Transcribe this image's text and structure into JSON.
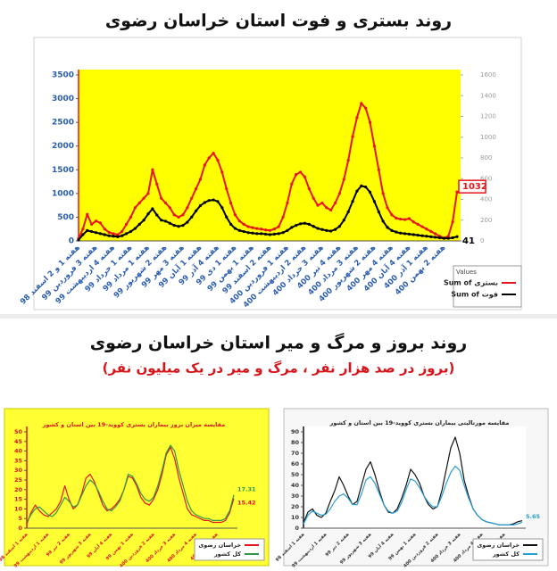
{
  "section_title": "روند بروز و مرگ و میر استان خراسان رضوی",
  "section_subtitle": "(بروز در صد هزار نفر ، مرگ و میر در یک میلیون نفر)",
  "chart_data": [
    {
      "type": "line",
      "title": "روند بستری و فوت استان خراسان رضوی",
      "plot_color": "#ffff00",
      "categories": [
        "هفته 1 و 2 اسفند 98",
        null,
        null,
        null,
        "هفته 3 فروردین 99",
        null,
        null,
        null,
        "هفته 4 اردیبهشت 99",
        null,
        null,
        null,
        "هفته 1 خرداد 99",
        null,
        null,
        null,
        "هفته 1 مرداد 99",
        null,
        null,
        null,
        "هفته 2 شهریور 99",
        null,
        null,
        null,
        "هفته 3 مهر 99",
        null,
        null,
        null,
        "هفته 1 آبان 99",
        null,
        null,
        null,
        "هفته 4 آذر 99",
        null,
        null,
        null,
        "هفته 1 دی 99",
        null,
        null,
        null,
        "هفته 1 بهمن 99",
        null,
        null,
        null,
        "هفته 2 اسفند 99",
        null,
        null,
        null,
        "هفته 1 فروردین 400",
        null,
        null,
        null,
        "هفته 2 اردیبهشت 400",
        null,
        null,
        null,
        "هفته 3 خرداد 400",
        null,
        null,
        null,
        "هفته 4 تیر 400",
        null,
        null,
        null,
        "هفته 3 مرداد 400",
        null,
        null,
        null,
        "هفته 2 شهریور 400",
        null,
        null,
        null,
        "هفته 4 مهر 400",
        null,
        null,
        null,
        "هفته 4 آبان 400",
        null,
        null,
        null,
        "هفته 1 آذر 400",
        null,
        null,
        null,
        "هفته 2 بهمن 400",
        null,
        null,
        null
      ],
      "series": [
        {
          "name": "Sum of بستری",
          "color": "#e8141b",
          "label_last": true,
          "values": [
            50,
            250,
            560,
            350,
            420,
            380,
            250,
            180,
            150,
            130,
            200,
            350,
            500,
            700,
            800,
            900,
            1000,
            1500,
            1200,
            900,
            800,
            700,
            550,
            500,
            550,
            700,
            900,
            1100,
            1300,
            1600,
            1750,
            1850,
            1700,
            1450,
            1100,
            800,
            550,
            420,
            350,
            300,
            280,
            260,
            250,
            230,
            220,
            250,
            300,
            500,
            800,
            1200,
            1400,
            1450,
            1350,
            1100,
            900,
            750,
            800,
            700,
            650,
            800,
            1000,
            1300,
            1700,
            2200,
            2600,
            2900,
            2800,
            2500,
            2000,
            1500,
            1000,
            700,
            550,
            480,
            460,
            450,
            470,
            400,
            350,
            300,
            250,
            200,
            150,
            100,
            60,
            100,
            400,
            1032
          ]
        },
        {
          "name": "Sum of فوت",
          "color": "#000000",
          "axis": "y2",
          "label_last": true,
          "values": [
            10,
            60,
            100,
            90,
            80,
            70,
            60,
            50,
            45,
            40,
            50,
            70,
            90,
            120,
            160,
            200,
            260,
            310,
            250,
            200,
            190,
            170,
            150,
            140,
            150,
            180,
            230,
            290,
            340,
            370,
            390,
            395,
            380,
            320,
            230,
            160,
            120,
            100,
            90,
            80,
            75,
            70,
            70,
            65,
            60,
            65,
            70,
            80,
            100,
            130,
            150,
            165,
            170,
            160,
            140,
            120,
            110,
            100,
            95,
            110,
            140,
            200,
            280,
            380,
            480,
            530,
            520,
            470,
            380,
            280,
            190,
            130,
            100,
            85,
            75,
            70,
            65,
            60,
            55,
            50,
            45,
            40,
            35,
            30,
            25,
            25,
            30,
            41
          ]
        }
      ],
      "ylim": [
        0,
        3500
      ],
      "yticks": [
        0,
        500,
        1000,
        1500,
        2000,
        2500,
        3000,
        3500
      ],
      "y2lim": [
        0,
        1600
      ],
      "y2ticks": [
        0,
        200,
        400,
        600,
        800,
        1000,
        1200,
        1400,
        1600
      ],
      "legend": "right",
      "legend_title": "Values"
    },
    {
      "type": "line",
      "title": "مقایسه میزان بروز بیماران بستری کووید-19 بین استان و کشور",
      "plot_color": "#ffff33",
      "categories": [
        "هفته 1 اسفند 98",
        null,
        null,
        null,
        null,
        "هفته 1 اردیبهشت 99",
        null,
        null,
        null,
        null,
        "هفته 2 تیر 99",
        null,
        null,
        null,
        null,
        "هفته 3 شهریور 99",
        null,
        null,
        null,
        null,
        "هفته 4 آبان 99",
        null,
        null,
        null,
        null,
        "هفته 1 بهمن 99",
        null,
        null,
        null,
        null,
        "هفته 2 فروردین 400",
        null,
        null,
        null,
        null,
        "هفته 3 خرداد 400",
        null,
        null,
        null,
        null,
        "هفته 4 مرداد 400",
        null,
        null,
        null,
        null,
        "هفته 1 آبان 400",
        null,
        null,
        null,
        null
      ],
      "series": [
        {
          "name": "خراسان رضوی",
          "color": "#e8141b",
          "label_last": true,
          "values": [
            2,
            8,
            12,
            9,
            7,
            6,
            8,
            10,
            14,
            22,
            15,
            10,
            12,
            18,
            26,
            28,
            24,
            18,
            12,
            9,
            10,
            12,
            15,
            20,
            27,
            26,
            22,
            16,
            13,
            12,
            15,
            20,
            28,
            38,
            42,
            36,
            26,
            18,
            10,
            7,
            6,
            5,
            4,
            4,
            3,
            3,
            3,
            4,
            8,
            15.42
          ]
        },
        {
          "name": "کل کشور",
          "color": "#2f9a4a",
          "label_last": true,
          "values": [
            3,
            7,
            10,
            11,
            9,
            7,
            6,
            8,
            12,
            16,
            14,
            11,
            12,
            17,
            22,
            25,
            23,
            19,
            14,
            10,
            9,
            11,
            14,
            20,
            28,
            27,
            23,
            18,
            15,
            14,
            16,
            22,
            30,
            39,
            43,
            40,
            30,
            22,
            14,
            9,
            7,
            6,
            5,
            5,
            4,
            4,
            4,
            5,
            9,
            17.31
          ]
        }
      ],
      "ylim": [
        0,
        50
      ],
      "yticks": [
        0,
        5,
        10,
        15,
        20,
        25,
        30,
        35,
        40,
        45,
        50
      ],
      "legend": "lower right"
    },
    {
      "type": "line",
      "title": "مقایسه مورتالیتی بیماران بستری کووید-19 بین استان و کشور",
      "plot_color": "#ffffff",
      "categories": [
        "هفته 1 اسفند 98",
        null,
        null,
        null,
        null,
        "هفته 1 اردیبهشت 99",
        null,
        null,
        null,
        null,
        "هفته 2 تیر 99",
        null,
        null,
        null,
        null,
        "هفته 3 شهریور 99",
        null,
        null,
        null,
        null,
        "هفته 4 آبان 99",
        null,
        null,
        null,
        null,
        "هفته 1 بهمن 99",
        null,
        null,
        null,
        null,
        "هفته 2 فروردین 400",
        null,
        null,
        null,
        null,
        "هفته 3 خرداد 400",
        null,
        null,
        null,
        null,
        "هفته 4 مرداد 400",
        null,
        null,
        null,
        null,
        "هفته 1 آبان 400",
        null,
        null,
        null,
        null
      ],
      "series": [
        {
          "name": "خراسان رضوی",
          "color": "#111111",
          "values": [
            5,
            15,
            18,
            12,
            10,
            14,
            25,
            35,
            48,
            40,
            30,
            22,
            25,
            40,
            55,
            62,
            50,
            35,
            22,
            15,
            14,
            18,
            28,
            40,
            55,
            50,
            42,
            30,
            22,
            18,
            20,
            35,
            55,
            75,
            85,
            70,
            45,
            30,
            18,
            12,
            8,
            6,
            5,
            4,
            3,
            3,
            3,
            4,
            6,
            7
          ]
        },
        {
          "name": "کل کشور",
          "color": "#2a9fd6",
          "label_last": true,
          "values": [
            4,
            12,
            16,
            14,
            12,
            13,
            18,
            25,
            30,
            32,
            28,
            22,
            22,
            32,
            45,
            48,
            42,
            32,
            22,
            16,
            14,
            16,
            24,
            36,
            46,
            44,
            38,
            30,
            24,
            20,
            20,
            30,
            42,
            52,
            58,
            54,
            40,
            28,
            18,
            12,
            8,
            6,
            5,
            4,
            3,
            3,
            3,
            3,
            4,
            5.65
          ]
        }
      ],
      "ylim": [
        0,
        90
      ],
      "yticks": [
        0,
        10,
        20,
        30,
        40,
        50,
        60,
        70,
        80,
        90
      ],
      "legend": "lower right"
    }
  ]
}
